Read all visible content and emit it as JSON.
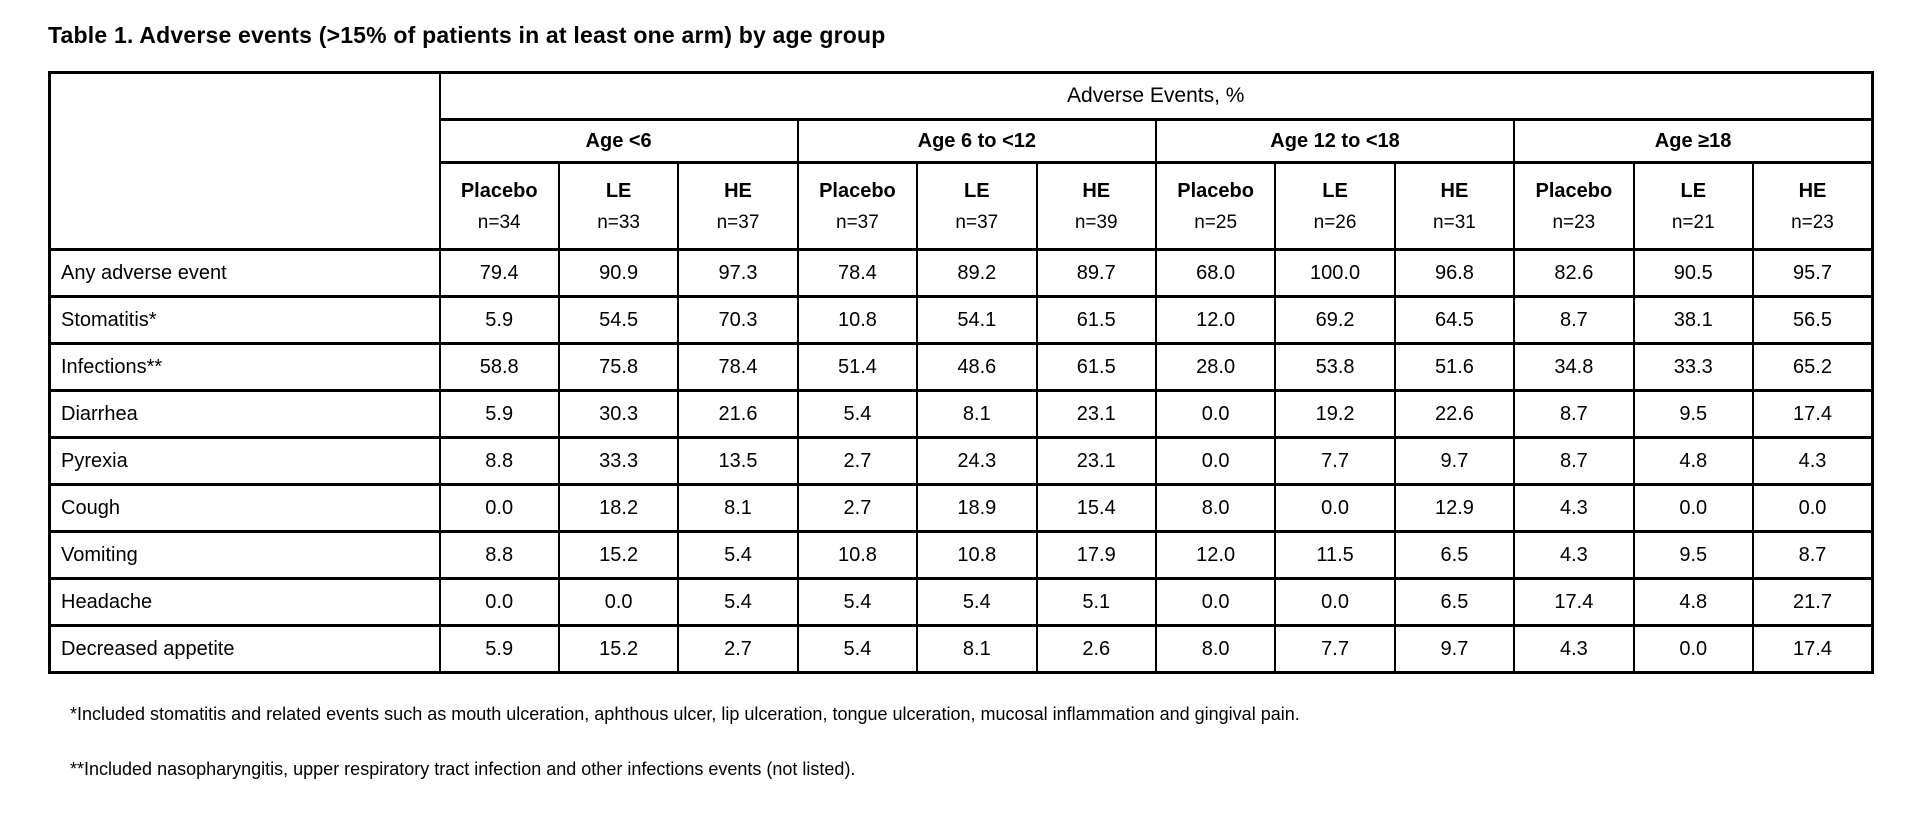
{
  "title": "Table 1. Adverse events (>15% of patients in at least one arm) by age group",
  "table": {
    "spanner": "Adverse Events, %",
    "age_groups": [
      "Age <6",
      "Age 6 to <12",
      "Age 12 to <18",
      "Age ≥18"
    ],
    "columns": [
      {
        "arm": "Placebo",
        "n": "n=34"
      },
      {
        "arm": "LE",
        "n": "n=33"
      },
      {
        "arm": "HE",
        "n": "n=37"
      },
      {
        "arm": "Placebo",
        "n": "n=37"
      },
      {
        "arm": "LE",
        "n": "n=37"
      },
      {
        "arm": "HE",
        "n": "n=39"
      },
      {
        "arm": "Placebo",
        "n": "n=25"
      },
      {
        "arm": "LE",
        "n": "n=26"
      },
      {
        "arm": "HE",
        "n": "n=31"
      },
      {
        "arm": "Placebo",
        "n": "n=23"
      },
      {
        "arm": "LE",
        "n": "n=21"
      },
      {
        "arm": "HE",
        "n": "n=23"
      }
    ],
    "rows": [
      {
        "label": "Any adverse event",
        "values": [
          "79.4",
          "90.9",
          "97.3",
          "78.4",
          "89.2",
          "89.7",
          "68.0",
          "100.0",
          "96.8",
          "82.6",
          "90.5",
          "95.7"
        ]
      },
      {
        "label": "Stomatitis*",
        "values": [
          "5.9",
          "54.5",
          "70.3",
          "10.8",
          "54.1",
          "61.5",
          "12.0",
          "69.2",
          "64.5",
          "8.7",
          "38.1",
          "56.5"
        ]
      },
      {
        "label": "Infections**",
        "values": [
          "58.8",
          "75.8",
          "78.4",
          "51.4",
          "48.6",
          "61.5",
          "28.0",
          "53.8",
          "51.6",
          "34.8",
          "33.3",
          "65.2"
        ]
      },
      {
        "label": "Diarrhea",
        "values": [
          "5.9",
          "30.3",
          "21.6",
          "5.4",
          "8.1",
          "23.1",
          "0.0",
          "19.2",
          "22.6",
          "8.7",
          "9.5",
          "17.4"
        ]
      },
      {
        "label": "Pyrexia",
        "values": [
          "8.8",
          "33.3",
          "13.5",
          "2.7",
          "24.3",
          "23.1",
          "0.0",
          "7.7",
          "9.7",
          "8.7",
          "4.8",
          "4.3"
        ]
      },
      {
        "label": "Cough",
        "values": [
          "0.0",
          "18.2",
          "8.1",
          "2.7",
          "18.9",
          "15.4",
          "8.0",
          "0.0",
          "12.9",
          "4.3",
          "0.0",
          "0.0"
        ]
      },
      {
        "label": "Vomiting",
        "values": [
          "8.8",
          "15.2",
          "5.4",
          "10.8",
          "10.8",
          "17.9",
          "12.0",
          "11.5",
          "6.5",
          "4.3",
          "9.5",
          "8.7"
        ]
      },
      {
        "label": "Headache",
        "values": [
          "0.0",
          "0.0",
          "5.4",
          "5.4",
          "5.4",
          "5.1",
          "0.0",
          "0.0",
          "6.5",
          "17.4",
          "4.8",
          "21.7"
        ]
      },
      {
        "label": "Decreased appetite",
        "values": [
          "5.9",
          "15.2",
          "2.7",
          "5.4",
          "8.1",
          "2.6",
          "8.0",
          "7.7",
          "9.7",
          "4.3",
          "0.0",
          "17.4"
        ]
      }
    ]
  },
  "footnotes": [
    "*Included stomatitis and related events such as mouth ulceration, aphthous ulcer, lip ulceration, tongue ulceration, mucosal inflammation and gingival pain.",
    "**Included nasopharyngitis, upper respiratory tract infection and other infections events (not listed)."
  ]
}
